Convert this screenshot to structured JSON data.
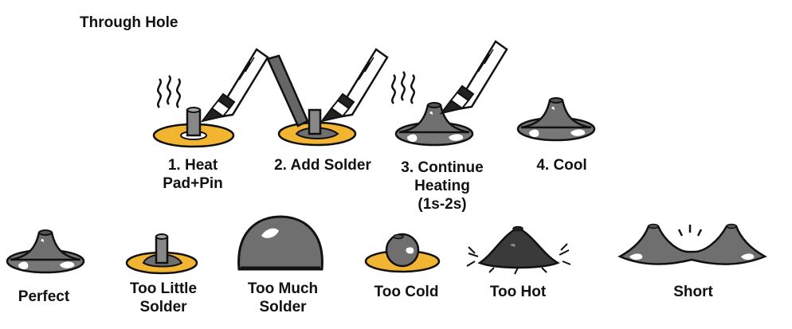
{
  "title": "Through Hole",
  "steps": [
    {
      "lines": [
        "1. Heat",
        "Pad+Pin"
      ]
    },
    {
      "lines": [
        "2. Add Solder"
      ]
    },
    {
      "lines": [
        "3. Continue",
        "Heating",
        "(1s-2s)"
      ]
    },
    {
      "lines": [
        "4. Cool"
      ]
    }
  ],
  "outcomes": [
    {
      "lines": [
        "Perfect"
      ]
    },
    {
      "lines": [
        "Too Little",
        "Solder"
      ]
    },
    {
      "lines": [
        "Too Much",
        "Solder"
      ]
    },
    {
      "lines": [
        "Too Cold"
      ]
    },
    {
      "lines": [
        "Too Hot"
      ]
    },
    {
      "lines": [
        "Short"
      ]
    }
  ],
  "colors": {
    "pad": "#f2b531",
    "solder": "#6f6f6f",
    "solder_highlight": "#ffffff",
    "iron": "#222222",
    "outline": "#111111",
    "charred": "#3a3a3a"
  }
}
